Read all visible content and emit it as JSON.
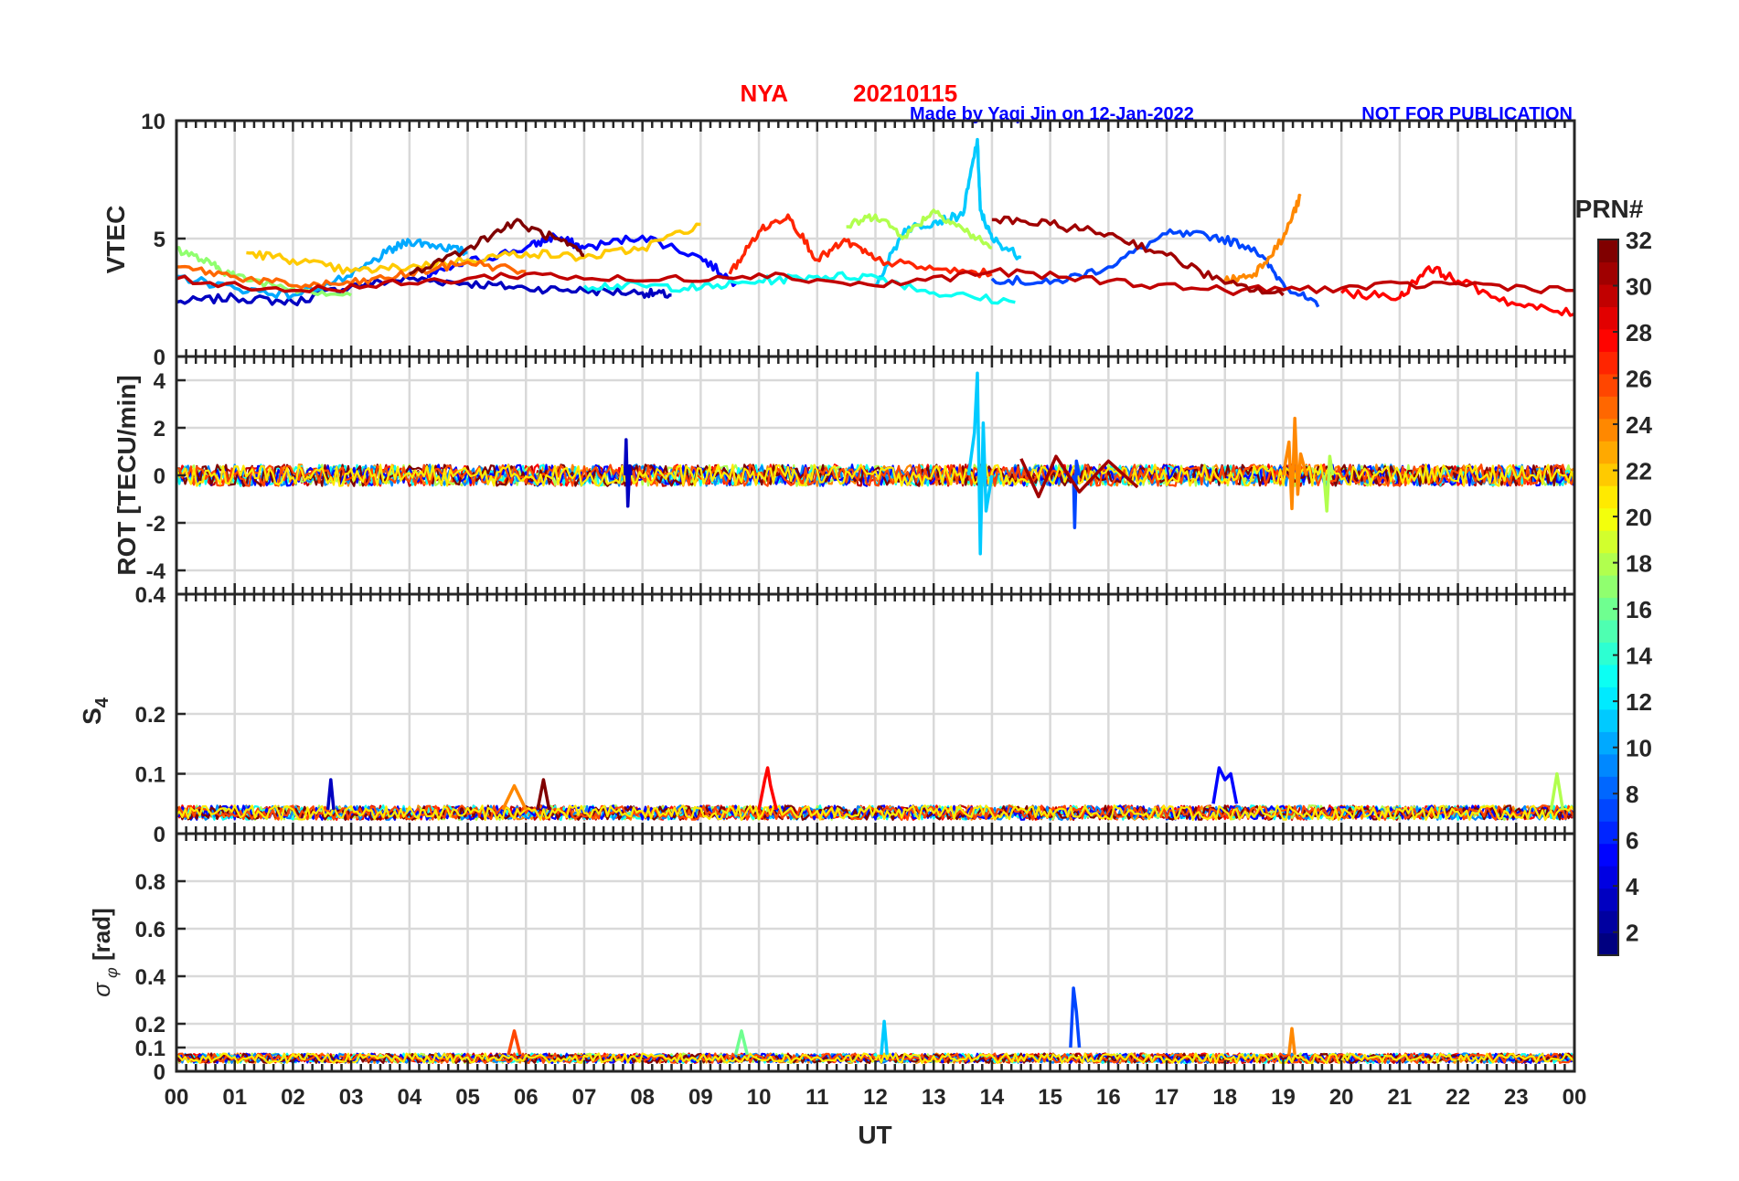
{
  "header": {
    "station": "NYA",
    "date": "20210115",
    "credit": "Made by Yaqi Jin on 12-Jan-2022",
    "notice": "NOT FOR PUBLICATION",
    "station_color": "#ff0000",
    "credit_color": "#0000ff"
  },
  "colorbar": {
    "title": "PRN#",
    "min": 1,
    "max": 32,
    "ticks": [
      2,
      4,
      6,
      8,
      10,
      12,
      14,
      16,
      18,
      20,
      22,
      24,
      26,
      28,
      30,
      32
    ],
    "tick_labels": [
      "2",
      "4",
      "6",
      "8",
      "10",
      "12",
      "14",
      "16",
      "18",
      "20",
      "22",
      "24",
      "26",
      "28",
      "30",
      "32"
    ],
    "colormap": "jet"
  },
  "chart_data": [
    {
      "type": "line",
      "id": "vtec",
      "ylabel": "VTEC",
      "xlabel": "",
      "xlim": [
        0,
        24
      ],
      "ylim": [
        0,
        10
      ],
      "yticks": [
        0,
        5,
        10
      ],
      "ytick_labels": [
        "0",
        "5",
        "10"
      ],
      "grid": true,
      "series": [
        {
          "prn": 3,
          "x": [
            0,
            1,
            2,
            3,
            4,
            5,
            6,
            7,
            8,
            8.5
          ],
          "values": [
            2.3,
            2.5,
            2.3,
            3.0,
            3.3,
            3.1,
            2.9,
            2.8,
            2.7,
            2.6
          ]
        },
        {
          "prn": 5,
          "x": [
            4.3,
            5,
            6,
            6.5,
            7,
            8,
            9,
            9.6
          ],
          "values": [
            3.4,
            4.0,
            4.6,
            5.1,
            4.6,
            5.1,
            4.2,
            3.1
          ]
        },
        {
          "prn": 7,
          "x": [
            14,
            15,
            16,
            17,
            17.8,
            18.5,
            19,
            19.6
          ],
          "values": [
            3.3,
            3.1,
            3.8,
            5.2,
            5.1,
            4.6,
            3.1,
            2.1
          ]
        },
        {
          "prn": 10,
          "x": [
            0,
            1,
            2,
            3,
            3.6,
            4,
            4.5,
            5
          ],
          "values": [
            3.4,
            2.9,
            2.6,
            3.4,
            4.4,
            4.9,
            4.7,
            4.4
          ]
        },
        {
          "prn": 11,
          "x": [
            12,
            12.5,
            13,
            13.5,
            13.75,
            13.8,
            14,
            14.5
          ],
          "values": [
            3.0,
            5.4,
            5.7,
            6.0,
            9.2,
            6.2,
            5.0,
            4.2
          ]
        },
        {
          "prn": 13,
          "x": [
            7,
            8,
            9,
            10,
            11,
            12,
            13,
            14.4
          ],
          "values": [
            3.0,
            3.0,
            2.9,
            3.2,
            3.4,
            3.4,
            2.7,
            2.3
          ]
        },
        {
          "prn": 17,
          "x": [
            0,
            0.6,
            1,
            2,
            3
          ],
          "values": [
            4.6,
            3.9,
            3.4,
            2.9,
            2.6
          ]
        },
        {
          "prn": 18,
          "x": [
            11.5,
            12,
            12.5,
            13,
            13.5,
            14
          ],
          "values": [
            5.5,
            6.0,
            5.1,
            6.2,
            5.4,
            4.6
          ]
        },
        {
          "prn": 22,
          "x": [
            1.2,
            2,
            3,
            4,
            5,
            6,
            7,
            8,
            9
          ],
          "values": [
            4.4,
            4.1,
            3.6,
            3.8,
            4.1,
            4.4,
            4.2,
            4.6,
            5.6
          ]
        },
        {
          "prn": 24,
          "x": [
            18,
            18.5,
            19,
            19.3
          ],
          "values": [
            3.2,
            3.5,
            5.0,
            6.8
          ]
        },
        {
          "prn": 25,
          "x": [
            0,
            1,
            2,
            3,
            4,
            5,
            6
          ],
          "values": [
            3.8,
            3.4,
            3.0,
            3.1,
            3.5,
            4.0,
            3.6
          ]
        },
        {
          "prn": 27,
          "x": [
            9.5,
            10,
            10.5,
            11,
            11.5,
            12,
            13,
            14
          ],
          "values": [
            3.5,
            5.3,
            6.0,
            4.1,
            4.9,
            4.1,
            3.7,
            3.5
          ]
        },
        {
          "prn": 28,
          "x": [
            20,
            21,
            21.5,
            22,
            23,
            24
          ],
          "values": [
            2.7,
            2.5,
            3.8,
            3.2,
            2.2,
            1.8
          ]
        },
        {
          "prn": 30,
          "x": [
            0,
            2,
            4,
            6,
            8,
            10,
            12,
            14,
            16,
            18,
            20,
            22,
            24
          ],
          "values": [
            3.3,
            2.8,
            3.1,
            3.5,
            3.2,
            3.5,
            3.0,
            3.6,
            3.2,
            2.8,
            2.9,
            3.1,
            2.8
          ]
        },
        {
          "prn": 31,
          "x": [
            14,
            15,
            16,
            17,
            18,
            19
          ],
          "values": [
            5.8,
            5.6,
            5.2,
            4.3,
            3.1,
            2.6
          ]
        },
        {
          "prn": 32,
          "x": [
            4,
            5,
            5.8,
            6.5,
            7
          ],
          "values": [
            3.5,
            4.6,
            5.7,
            5.0,
            4.3
          ]
        }
      ]
    },
    {
      "type": "line",
      "id": "rot",
      "ylabel": "ROT [TECU/min]",
      "xlabel": "",
      "xlim": [
        0,
        24
      ],
      "ylim": [
        -5,
        5
      ],
      "yticks": [
        -4,
        -2,
        0,
        2,
        4
      ],
      "ytick_labels": [
        "-4",
        "-2",
        "0",
        "2",
        "4"
      ],
      "grid": true,
      "series": [
        {
          "prn": 3,
          "x": [
            7.7,
            7.72,
            7.75,
            7.78,
            7.8
          ],
          "values": [
            0,
            1.5,
            -1.3,
            0.4,
            0
          ]
        },
        {
          "prn": 7,
          "x": [
            15.4,
            15.42,
            15.45,
            15.5
          ],
          "values": [
            0,
            -2.2,
            0.6,
            0
          ]
        },
        {
          "prn": 11,
          "x": [
            13.6,
            13.7,
            13.75,
            13.8,
            13.85,
            13.9,
            14.0
          ],
          "values": [
            0,
            1.8,
            4.3,
            -3.3,
            2.2,
            -1.5,
            0
          ]
        },
        {
          "prn": 24,
          "x": [
            19.0,
            19.1,
            19.15,
            19.2,
            19.25,
            19.3,
            19.4
          ],
          "values": [
            0,
            1.4,
            -1.4,
            2.4,
            -0.8,
            0.9,
            0
          ]
        },
        {
          "prn": 18,
          "x": [
            19.7,
            19.75,
            19.8,
            19.85
          ],
          "values": [
            0,
            -1.5,
            0.8,
            0
          ]
        },
        {
          "prn": 31,
          "x": [
            14.5,
            14.8,
            15.1,
            15.5,
            16.0,
            16.5
          ],
          "values": [
            0.7,
            -0.9,
            0.8,
            -0.7,
            0.6,
            -0.5
          ]
        }
      ]
    },
    {
      "type": "line",
      "id": "s4",
      "ylabel": "S4",
      "xlabel": "",
      "xlim": [
        0,
        24
      ],
      "ylim": [
        0,
        0.4
      ],
      "yticks": [
        0,
        0.1,
        0.2,
        0.4
      ],
      "ytick_labels": [
        "0",
        "0.1",
        "0.2",
        "0.4"
      ],
      "grid": true,
      "series": [
        {
          "prn": 28,
          "x": [
            10.0,
            10.1,
            10.15,
            10.2,
            10.3
          ],
          "values": [
            0.04,
            0.09,
            0.11,
            0.08,
            0.04
          ]
        },
        {
          "prn": 5,
          "x": [
            17.8,
            17.9,
            18.0,
            18.1,
            18.2
          ],
          "values": [
            0.05,
            0.11,
            0.09,
            0.1,
            0.05
          ]
        },
        {
          "prn": 3,
          "x": [
            2.6,
            2.65,
            2.7
          ],
          "values": [
            0.04,
            0.09,
            0.04
          ]
        },
        {
          "prn": 24,
          "x": [
            5.6,
            5.8,
            6.0
          ],
          "values": [
            0.04,
            0.08,
            0.04
          ]
        },
        {
          "prn": 32,
          "x": [
            6.2,
            6.3,
            6.4
          ],
          "values": [
            0.04,
            0.09,
            0.04
          ]
        },
        {
          "prn": 18,
          "x": [
            23.6,
            23.7,
            23.8
          ],
          "values": [
            0.04,
            0.1,
            0.04
          ]
        }
      ]
    },
    {
      "type": "line",
      "id": "sigma_phi",
      "ylabel": "σφ [rad]",
      "xlabel": "UT",
      "xlim": [
        0,
        24
      ],
      "ylim": [
        0,
        1
      ],
      "yticks": [
        0,
        0.1,
        0.2,
        0.4,
        0.6,
        0.8
      ],
      "ytick_labels": [
        "0",
        "0.1",
        "0.2",
        "0.4",
        "0.6",
        "0.8"
      ],
      "xticks": [
        0,
        1,
        2,
        3,
        4,
        5,
        6,
        7,
        8,
        9,
        10,
        11,
        12,
        13,
        14,
        15,
        16,
        17,
        18,
        19,
        20,
        21,
        22,
        23,
        24
      ],
      "xtick_labels": [
        "00",
        "01",
        "02",
        "03",
        "04",
        "05",
        "06",
        "07",
        "08",
        "09",
        "10",
        "11",
        "12",
        "13",
        "14",
        "15",
        "16",
        "17",
        "18",
        "19",
        "20",
        "21",
        "22",
        "23",
        "00"
      ],
      "grid": true,
      "series": [
        {
          "prn": 7,
          "x": [
            15.35,
            15.4,
            15.45,
            15.5
          ],
          "values": [
            0.1,
            0.35,
            0.25,
            0.1
          ]
        },
        {
          "prn": 11,
          "x": [
            12.1,
            12.15,
            12.2
          ],
          "values": [
            0.07,
            0.21,
            0.07
          ]
        },
        {
          "prn": 24,
          "x": [
            19.1,
            19.15,
            19.2
          ],
          "values": [
            0.07,
            0.18,
            0.07
          ]
        },
        {
          "prn": 16,
          "x": [
            9.6,
            9.7,
            9.8
          ],
          "values": [
            0.07,
            0.17,
            0.07
          ]
        },
        {
          "prn": 26,
          "x": [
            5.7,
            5.8,
            5.9
          ],
          "values": [
            0.07,
            0.17,
            0.07
          ]
        }
      ]
    }
  ]
}
